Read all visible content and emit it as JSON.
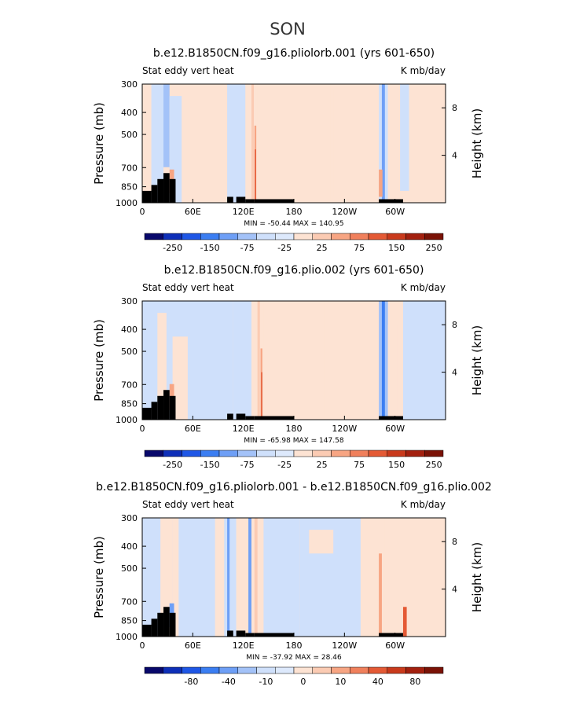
{
  "page_title": "SON",
  "colors": {
    "palette": [
      "#08086b",
      "#0e2fb8",
      "#1f57e6",
      "#3b7ef2",
      "#6e9ff6",
      "#a3c2f8",
      "#cfe0fb",
      "#dde9fc",
      "#fde3d3",
      "#fbcbb3",
      "#f7a583",
      "#f0805c",
      "#e45a35",
      "#c93a1c",
      "#a3200f",
      "#7a1206"
    ],
    "background_field": "#d6e6fb",
    "land": "#000000"
  },
  "shared_axes": {
    "left_label": "Pressure (mb)",
    "right_label": "Height (km)",
    "left_title": "Stat eddy vert heat",
    "right_title": "K mb/day",
    "pressure_ticks": [
      "300",
      "400",
      "500",
      "700",
      "850",
      "1000"
    ],
    "height_ticks": [
      "8",
      "4"
    ],
    "lon_ticks": [
      "0",
      "60E",
      "120E",
      "180",
      "120W",
      "60W"
    ]
  },
  "panels": [
    {
      "title": "b.e12.B1850CN.f09_g16.pliolorb.001 (yrs 601-650)",
      "min_max": "MIN = -50.44   MAX = 140.95",
      "colorbar_labels": [
        "-250",
        "-150",
        "-75",
        "-25",
        "25",
        "75",
        "150",
        "250"
      ]
    },
    {
      "title": "b.e12.B1850CN.f09_g16.plio.002 (yrs 601-650)",
      "min_max": "MIN = -65.98   MAX = 147.58",
      "colorbar_labels": [
        "-250",
        "-150",
        "-75",
        "-25",
        "25",
        "75",
        "150",
        "250"
      ]
    },
    {
      "title": "b.e12.B1850CN.f09_g16.pliolorb.001 - b.e12.B1850CN.f09_g16.plio.002",
      "min_max": "MIN = -37.92   MAX = 28.46",
      "colorbar_labels": [
        "-80",
        "-40",
        "-10",
        "0",
        "10",
        "40",
        "80"
      ]
    }
  ],
  "chart_data": [
    {
      "type": "heatmap",
      "title": "b.e12.B1850CN.f09_g16.pliolorb.001 (yrs 601-650)",
      "subtitle_left": "Stat eddy vert heat",
      "subtitle_right": "K mb/day",
      "xlabel": "",
      "ylabel": "Pressure (mb)",
      "y2label": "Height (km)",
      "x_ticks": [
        "0",
        "60E",
        "120E",
        "180",
        "120W",
        "60W"
      ],
      "y_ticks": [
        300,
        400,
        500,
        700,
        850,
        1000
      ],
      "contour_levels": [
        -250,
        -150,
        -75,
        -25,
        25,
        75,
        150,
        250
      ],
      "min": -50.44,
      "max": 140.95
    },
    {
      "type": "heatmap",
      "title": "b.e12.B1850CN.f09_g16.plio.002 (yrs 601-650)",
      "subtitle_left": "Stat eddy vert heat",
      "subtitle_right": "K mb/day",
      "xlabel": "",
      "ylabel": "Pressure (mb)",
      "y2label": "Height (km)",
      "x_ticks": [
        "0",
        "60E",
        "120E",
        "180",
        "120W",
        "60W"
      ],
      "y_ticks": [
        300,
        400,
        500,
        700,
        850,
        1000
      ],
      "contour_levels": [
        -250,
        -150,
        -75,
        -25,
        25,
        75,
        150,
        250
      ],
      "min": -65.98,
      "max": 147.58
    },
    {
      "type": "heatmap",
      "title": "b.e12.B1850CN.f09_g16.pliolorb.001 - b.e12.B1850CN.f09_g16.plio.002",
      "subtitle_left": "Stat eddy vert heat",
      "subtitle_right": "K mb/day",
      "xlabel": "",
      "ylabel": "Pressure (mb)",
      "y2label": "Height (km)",
      "x_ticks": [
        "0",
        "60E",
        "120E",
        "180",
        "120W",
        "60W"
      ],
      "y_ticks": [
        300,
        400,
        500,
        700,
        850,
        1000
      ],
      "contour_levels": [
        -80,
        -40,
        -10,
        0,
        10,
        40,
        80
      ],
      "min": -37.92,
      "max": 28.46
    }
  ]
}
